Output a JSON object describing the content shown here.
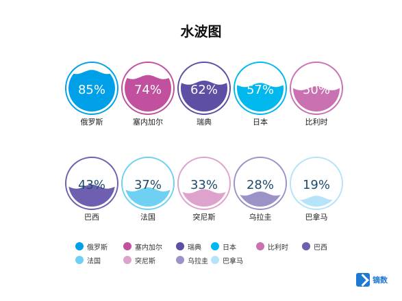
{
  "chart_data": {
    "type": "liquidfill",
    "title": "水波图",
    "categories": [
      "俄罗斯",
      "塞内加尔",
      "瑞典",
      "日本",
      "比利时",
      "巴西",
      "法国",
      "突尼斯",
      "乌拉圭",
      "巴拿马"
    ],
    "values": [
      85,
      74,
      62,
      57,
      50,
      43,
      37,
      33,
      28,
      19
    ],
    "value_labels": [
      "85%",
      "74%",
      "62%",
      "57%",
      "50%",
      "43%",
      "37%",
      "33%",
      "28%",
      "19%"
    ],
    "colors": [
      "#00a0e9",
      "#c1509e",
      "#5e4ea4",
      "#00b7ee",
      "#c971b1",
      "#6f5fb0",
      "#6fd0f3",
      "#dea3cd",
      "#9b93c7",
      "#b5e3f8"
    ],
    "legend": [
      "俄罗斯",
      "塞内加尔",
      "瑞典",
      "日本",
      "比利时",
      "巴西",
      "法国",
      "突尼斯",
      "乌拉圭",
      "巴拿马"
    ],
    "legend_position": "bottom-left"
  },
  "brand": {
    "logo_text": "镝数"
  }
}
